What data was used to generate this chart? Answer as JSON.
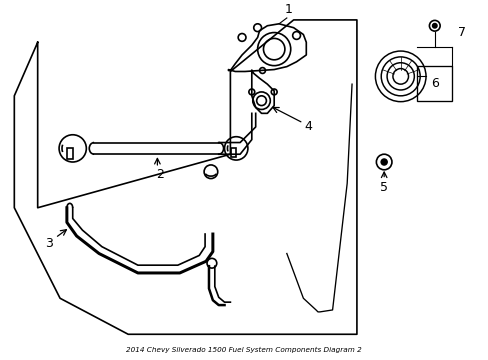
{
  "bg_color": "#ffffff",
  "line_color": "#000000",
  "line_width": 1.2,
  "fig_width": 4.89,
  "fig_height": 3.6,
  "dpi": 100,
  "title": "2014 Chevy Silverado 1500 Fuel System Components Diagram 2"
}
